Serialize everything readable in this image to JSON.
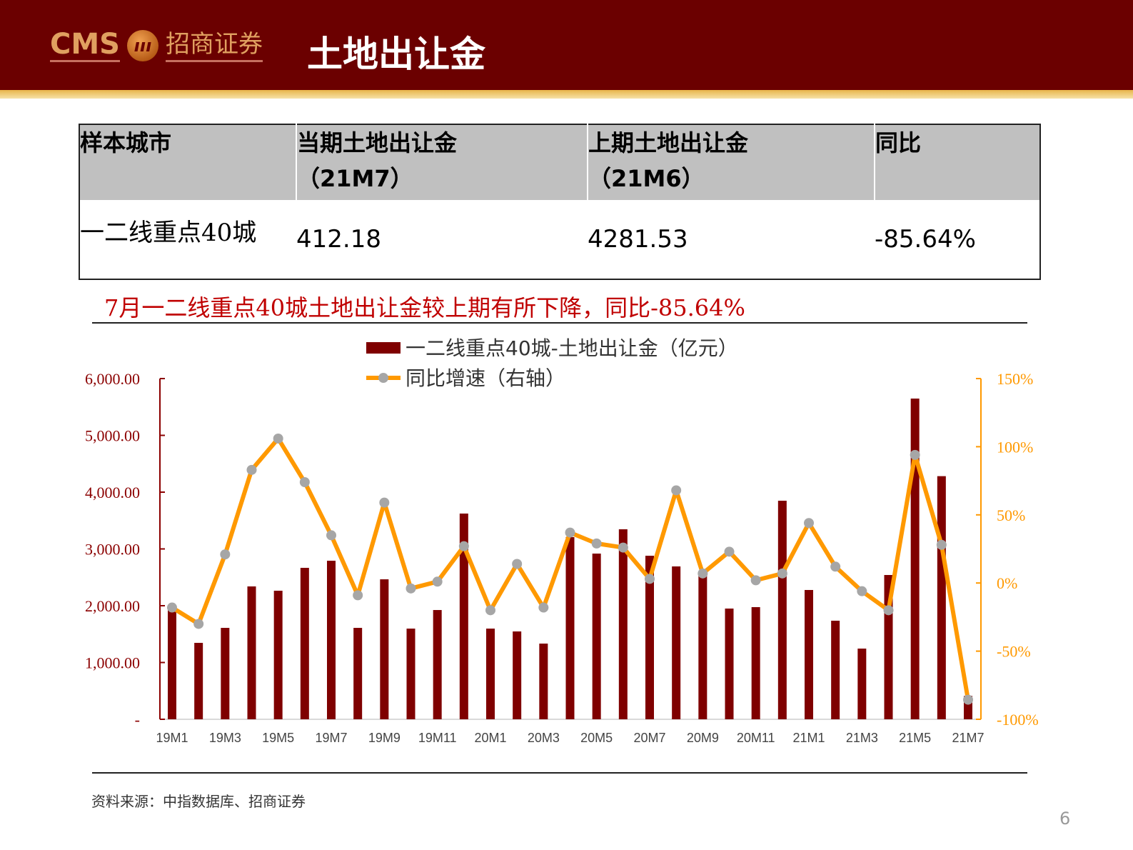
{
  "header": {
    "logo_text": "CMS 招商证券",
    "title": "土地出让金"
  },
  "table": {
    "headers": [
      [
        "样本城市"
      ],
      [
        "当期土地出让金",
        "（21M7）"
      ],
      [
        "上期土地出让金",
        "（21M6）"
      ],
      [
        "同比"
      ]
    ],
    "rows": [
      [
        "一二线重点40城",
        "412.18",
        "4281.53",
        "-85.64%"
      ]
    ]
  },
  "subtitle": "7月一二线重点40城土地出让金较上期有所下降，同比-85.64%",
  "source": "资料来源：中指数据库、招商证券",
  "page_number": "6",
  "colors": {
    "bar": "#7f0000",
    "line": "#ff9900",
    "marker": "#a6a6a6",
    "header": "#6b0000"
  },
  "chart_data": {
    "type": "bar+line",
    "categories": [
      "19M1",
      "19M2",
      "19M3",
      "19M4",
      "19M5",
      "19M6",
      "19M7",
      "19M8",
      "19M9",
      "19M10",
      "19M11",
      "19M12",
      "20M1",
      "20M2",
      "20M3",
      "20M4",
      "20M5",
      "20M6",
      "20M7",
      "20M8",
      "20M9",
      "20M10",
      "20M11",
      "20M12",
      "21M1",
      "21M2",
      "21M3",
      "21M4",
      "21M5",
      "21M6",
      "21M7"
    ],
    "x_tick_labels": [
      "19M1",
      "19M3",
      "19M5",
      "19M7",
      "19M9",
      "19M11",
      "20M1",
      "20M3",
      "20M5",
      "20M7",
      "20M9",
      "20M11",
      "21M1",
      "21M3",
      "21M5",
      "21M7"
    ],
    "series": [
      {
        "name": "一二线重点40城-土地出让金（亿元）",
        "type": "bar",
        "axis": "left",
        "values": [
          2000,
          1346,
          1610,
          2340,
          2264,
          2667,
          2792,
          1610,
          2465,
          1597,
          1924,
          3623,
          1597,
          1547,
          1333,
          3208,
          2918,
          3346,
          2880,
          2692,
          2600,
          1950,
          1975,
          3849,
          2277,
          1736,
          1245,
          2541,
          5648,
          4281.53,
          412.18
        ]
      },
      {
        "name": "同比增速（右轴）",
        "type": "line",
        "axis": "right",
        "values": [
          -18,
          -30,
          21,
          83,
          106,
          74,
          35,
          -9,
          59,
          -4,
          1,
          27,
          -20,
          14,
          -18,
          37,
          29,
          26,
          3,
          68,
          7,
          23,
          2,
          7,
          44,
          12,
          -6,
          -20,
          94,
          28,
          -85.64
        ]
      }
    ],
    "left_axis": {
      "range": [
        0,
        6000
      ],
      "tick_labels": [
        "-",
        "1,000.00",
        "2,000.00",
        "3,000.00",
        "4,000.00",
        "5,000.00",
        "6,000.00"
      ]
    },
    "right_axis": {
      "range": [
        -100,
        150
      ],
      "unit": "%",
      "tick_labels": [
        "-100%",
        "-50%",
        "0%",
        "50%",
        "100%",
        "150%"
      ]
    },
    "legend_position": "top-center",
    "grid": false
  }
}
